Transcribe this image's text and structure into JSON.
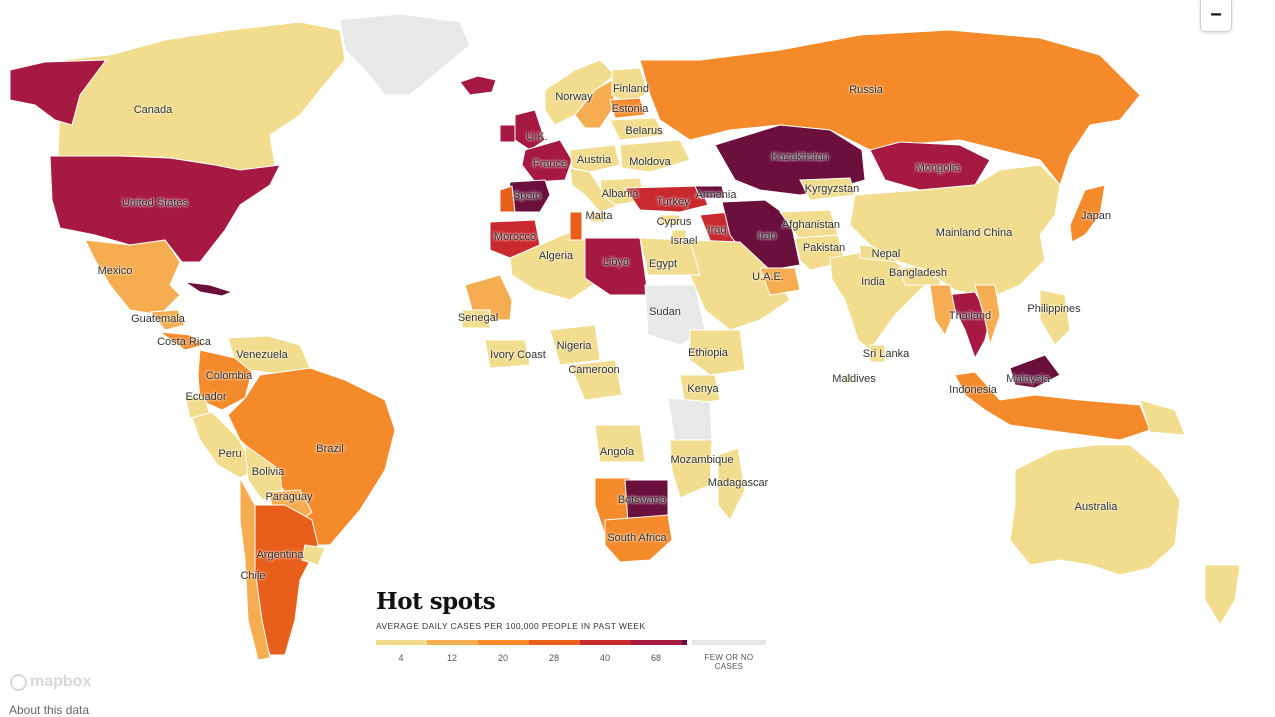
{
  "palette": {
    "c1": "#f2dc8d",
    "c2": "#f6ad52",
    "c3": "#f58a2a",
    "c4": "#e85f1c",
    "c5": "#c8292f",
    "c6": "#a51943",
    "c7": "#6b0f3c",
    "none": "#e8e8e8"
  },
  "countries": [
    {
      "name": "Canada",
      "label": "Canada",
      "level": "c1"
    },
    {
      "name": "Alaska",
      "label": "",
      "level": "c6"
    },
    {
      "name": "United States",
      "label": "United States",
      "level": "c6"
    },
    {
      "name": "Greenland",
      "label": "",
      "level": "none"
    },
    {
      "name": "Iceland",
      "label": "",
      "level": "c6"
    },
    {
      "name": "Mexico",
      "label": "Mexico",
      "level": "c2"
    },
    {
      "name": "Guatemala",
      "label": "Guatemala",
      "level": "c2"
    },
    {
      "name": "Costa Rica",
      "label": "Costa Rica",
      "level": "c3"
    },
    {
      "name": "Cuba",
      "label": "",
      "level": "c7"
    },
    {
      "name": "Venezuela",
      "label": "Venezuela",
      "level": "c1"
    },
    {
      "name": "Colombia",
      "label": "Colombia",
      "level": "c3"
    },
    {
      "name": "Ecuador",
      "label": "Ecuador",
      "level": "c1"
    },
    {
      "name": "Peru",
      "label": "Peru",
      "level": "c1"
    },
    {
      "name": "Brazil",
      "label": "Brazil",
      "level": "c3"
    },
    {
      "name": "Bolivia",
      "label": "Bolivia",
      "level": "c1"
    },
    {
      "name": "Paraguay",
      "label": "Paraguay",
      "level": "c2"
    },
    {
      "name": "Argentina",
      "label": "Argentina",
      "level": "c4"
    },
    {
      "name": "Chile",
      "label": "Chile",
      "level": "c2"
    },
    {
      "name": "Uruguay",
      "label": "",
      "level": "c1"
    },
    {
      "name": "Norway",
      "label": "Norway",
      "level": "c1"
    },
    {
      "name": "Sweden",
      "label": "",
      "level": "c2"
    },
    {
      "name": "Finland",
      "label": "Finland",
      "level": "c1"
    },
    {
      "name": "Estonia",
      "label": "Estonia",
      "level": "c3"
    },
    {
      "name": "Belarus",
      "label": "Belarus",
      "level": "c1"
    },
    {
      "name": "U.K.",
      "label": "U.K.",
      "level": "c6"
    },
    {
      "name": "Ireland",
      "label": "",
      "level": "c6"
    },
    {
      "name": "France",
      "label": "France",
      "level": "c6"
    },
    {
      "name": "Spain",
      "label": "Spain",
      "level": "c7"
    },
    {
      "name": "Portugal",
      "label": "",
      "level": "c4"
    },
    {
      "name": "Austria",
      "label": "Austria",
      "level": "c1"
    },
    {
      "name": "Moldova",
      "label": "Moldova",
      "level": "c1"
    },
    {
      "name": "Italy",
      "label": "",
      "level": "c1"
    },
    {
      "name": "Albania",
      "label": "Albania",
      "level": "c1"
    },
    {
      "name": "Malta",
      "label": "Malta",
      "level": "c1"
    },
    {
      "name": "Russia",
      "label": "Russia",
      "level": "c3"
    },
    {
      "name": "Kazakhstan",
      "label": "Kazakhstan",
      "level": "c7"
    },
    {
      "name": "Mongolia",
      "label": "Mongolia",
      "level": "c6"
    },
    {
      "name": "Kyrgyzstan",
      "label": "Kyrgyzstan",
      "level": "c1"
    },
    {
      "name": "Turkey",
      "label": "Turkey",
      "level": "c5"
    },
    {
      "name": "Armenia",
      "label": "Armenia",
      "level": "c7"
    },
    {
      "name": "Cyprus",
      "label": "Cyprus",
      "level": "c1"
    },
    {
      "name": "Israel",
      "label": "Israel",
      "level": "c1"
    },
    {
      "name": "Iraq",
      "label": "Iraq",
      "level": "c5"
    },
    {
      "name": "Iran",
      "label": "Iran",
      "level": "c7"
    },
    {
      "name": "Afghanistan",
      "label": "Afghanistan",
      "level": "c1"
    },
    {
      "name": "Pakistan",
      "label": "Pakistan",
      "level": "c1"
    },
    {
      "name": "India",
      "label": "India",
      "level": "c1"
    },
    {
      "name": "Nepal",
      "label": "Nepal",
      "level": "c1"
    },
    {
      "name": "Bangladesh",
      "label": "Bangladesh",
      "level": "c1"
    },
    {
      "name": "Sri Lanka",
      "label": "Sri Lanka",
      "level": "c1"
    },
    {
      "name": "Maldives",
      "label": "Maldives",
      "level": "c1"
    },
    {
      "name": "Saudi Arabia",
      "label": "",
      "level": "c1"
    },
    {
      "name": "U.A.E.",
      "label": "U.A.E.",
      "level": "c2"
    },
    {
      "name": "Mainland China",
      "label": "Mainland China",
      "level": "c1"
    },
    {
      "name": "Japan",
      "label": "Japan",
      "level": "c3"
    },
    {
      "name": "Thailand",
      "label": "Thailand",
      "level": "c6"
    },
    {
      "name": "Myanmar",
      "label": "",
      "level": "c2"
    },
    {
      "name": "Vietnam",
      "label": "",
      "level": "c2"
    },
    {
      "name": "Malaysia",
      "label": "Malaysia",
      "level": "c7"
    },
    {
      "name": "Philippines",
      "label": "Philippines",
      "level": "c1"
    },
    {
      "name": "Indonesia",
      "label": "Indonesia",
      "level": "c3"
    },
    {
      "name": "Papua New Guinea",
      "label": "",
      "level": "c1"
    },
    {
      "name": "Australia",
      "label": "Australia",
      "level": "c1"
    },
    {
      "name": "New Zealand",
      "label": "",
      "level": "c1"
    },
    {
      "name": "Morocco",
      "label": "Morocco",
      "level": "c5"
    },
    {
      "name": "Algeria",
      "label": "Algeria",
      "level": "c1"
    },
    {
      "name": "Tunisia",
      "label": "",
      "level": "c4"
    },
    {
      "name": "Libya",
      "label": "Libya",
      "level": "c6"
    },
    {
      "name": "Egypt",
      "label": "Egypt",
      "level": "c1"
    },
    {
      "name": "Mauritania",
      "label": "",
      "level": "c2"
    },
    {
      "name": "Senegal",
      "label": "Senegal",
      "level": "c1"
    },
    {
      "name": "Ivory Coast",
      "label": "Ivory Coast",
      "level": "c1"
    },
    {
      "name": "Nigeria",
      "label": "Nigeria",
      "level": "c1"
    },
    {
      "name": "Cameroon",
      "label": "Cameroon",
      "level": "c1"
    },
    {
      "name": "Sudan",
      "label": "Sudan",
      "level": "none"
    },
    {
      "name": "Ethiopia",
      "label": "Ethiopia",
      "level": "c1"
    },
    {
      "name": "Kenya",
      "label": "Kenya",
      "level": "c1"
    },
    {
      "name": "Tanzania",
      "label": "",
      "level": "none"
    },
    {
      "name": "Angola",
      "label": "Angola",
      "level": "c1"
    },
    {
      "name": "Mozambique",
      "label": "Mozambique",
      "level": "c1"
    },
    {
      "name": "Madagascar",
      "label": "Madagascar",
      "level": "c1"
    },
    {
      "name": "Namibia",
      "label": "",
      "level": "c3"
    },
    {
      "name": "Botswana",
      "label": "Botswana",
      "level": "c7"
    },
    {
      "name": "South Africa",
      "label": "South Africa",
      "level": "c3"
    }
  ],
  "legend": {
    "title": "Hot spots",
    "subtitle": "AVERAGE DAILY CASES PER 100,000 PEOPLE IN PAST WEEK",
    "ticks": [
      "4",
      "12",
      "20",
      "28",
      "40",
      "68"
    ],
    "none_label": "FEW OR NO CASES"
  },
  "zoom_out_label": "−",
  "mapbox_label": "mapbox",
  "about_label": "About this data"
}
